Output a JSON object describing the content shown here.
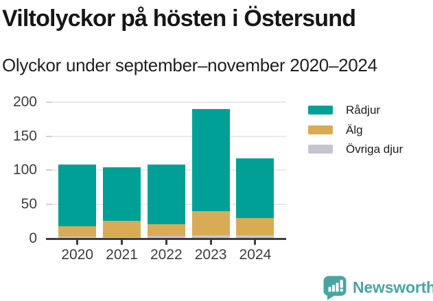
{
  "header": {
    "title": "Viltolyckor på hösten i Östersund",
    "subtitle": "Olyckor under september–november 2020–2024"
  },
  "chart_data": {
    "type": "bar",
    "stacked": true,
    "title": "Viltolyckor på hösten i Östersund",
    "subtitle": "Olyckor under september–november 2020–2024",
    "categories": [
      "2020",
      "2021",
      "2022",
      "2023",
      "2024"
    ],
    "series": [
      {
        "name": "Rådjur",
        "color": "#00A096",
        "values": [
          90,
          78,
          87,
          150,
          87
        ]
      },
      {
        "name": "Älg",
        "color": "#D9AB55",
        "values": [
          15,
          24,
          17,
          35,
          25
        ]
      },
      {
        "name": "Övriga djur",
        "color": "#C6C4D0",
        "values": [
          3,
          2,
          4,
          5,
          5
        ]
      }
    ],
    "stack_order_bottom_to_top": [
      "Övriga djur",
      "Älg",
      "Rådjur"
    ],
    "totals": [
      108,
      104,
      108,
      190,
      117
    ],
    "xlabel": "",
    "ylabel": "",
    "ylim": [
      0,
      200
    ],
    "yticks": [
      0,
      50,
      100,
      150,
      200
    ],
    "grid": true,
    "legend_position": "right"
  },
  "footer": {
    "brand": "Newsworthy",
    "brand_color": "#4BA3A0",
    "logo_icon": "newsworthy-bubble-barchart-icon"
  }
}
